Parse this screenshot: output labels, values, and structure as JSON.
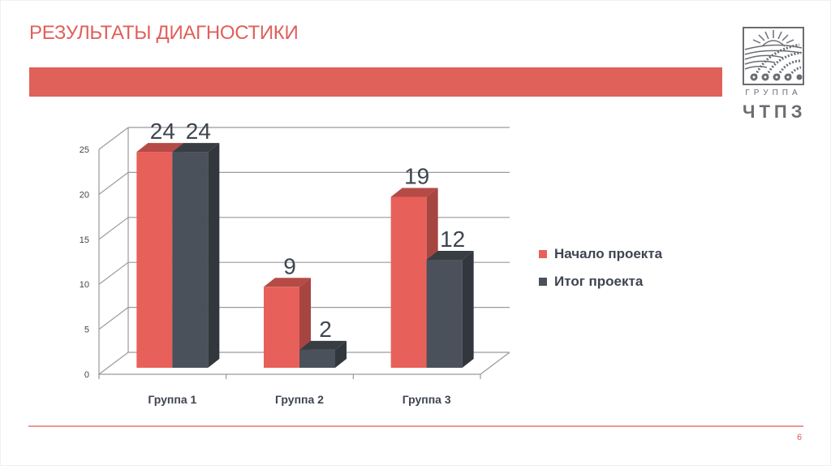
{
  "slide": {
    "title": "РЕЗУЛЬТАТЫ ДИАГНОСТИКИ",
    "page_number": "6",
    "accent_color": "#e0605a"
  },
  "logo": {
    "group_label": "ГРУППА",
    "company_name": "ЧТПЗ"
  },
  "chart_data": {
    "type": "bar",
    "style": "3d-clustered-column",
    "title": "",
    "xlabel": "",
    "ylabel": "",
    "categories": [
      "Группа 1",
      "Группа 2",
      "Группа 3"
    ],
    "series": [
      {
        "name": "Начало проекта",
        "values": [
          24,
          9,
          19
        ],
        "color": "#e8605a"
      },
      {
        "name": "Итог проекта",
        "values": [
          24,
          2,
          12
        ],
        "color": "#4a515b"
      }
    ],
    "data_labels": [
      [
        "24",
        "9",
        "19"
      ],
      [
        "24",
        "2",
        "12"
      ]
    ],
    "y_ticks": [
      "0",
      "5",
      "10",
      "15",
      "20",
      "25"
    ],
    "ylim": [
      0,
      25
    ],
    "grid": true,
    "legend_position": "right"
  }
}
